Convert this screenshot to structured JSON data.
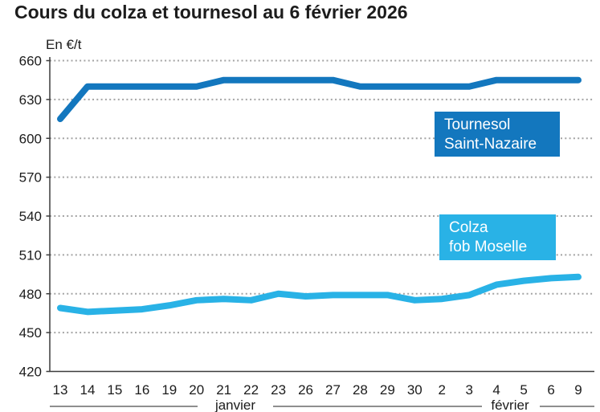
{
  "title": "Cours du colza et tournesol au 6 février 2026",
  "unit_label": "En €/t",
  "colors": {
    "tournesol_blue": "#1377be",
    "colza_blue": "#29b2e6",
    "grid_gray": "#a3a3a3",
    "axis_dark": "#3c3c3c",
    "text_dark": "#1c1c1c",
    "legend_text": "#ffffff"
  },
  "chart_data": {
    "type": "line",
    "title": "Cours du colza et tournesol au 6 février 2026",
    "ylabel": "En €/t",
    "xlabel": "",
    "ylim": [
      420,
      660
    ],
    "yticks": [
      420,
      450,
      480,
      510,
      540,
      570,
      600,
      630,
      660
    ],
    "grid": "dotted horizontal",
    "legend_position": "inline boxes right of plot center",
    "categories": [
      "13",
      "14",
      "15",
      "16",
      "19",
      "20",
      "21",
      "22",
      "23",
      "26",
      "27",
      "28",
      "29",
      "30",
      "2",
      "3",
      "4",
      "5",
      "6",
      "9"
    ],
    "x_groups": [
      {
        "label": "janvier",
        "from": "13",
        "to": "30"
      },
      {
        "label": "février",
        "from": "2",
        "to": "9"
      }
    ],
    "series": [
      {
        "name": "Tournesol Saint-Nazaire",
        "label_lines": [
          "Tournesol",
          "Saint-Nazaire"
        ],
        "color": "#1377be",
        "values": [
          615,
          640,
          640,
          640,
          640,
          640,
          645,
          645,
          645,
          645,
          645,
          640,
          640,
          640,
          640,
          640,
          645,
          645,
          645,
          645
        ]
      },
      {
        "name": "Colza fob Moselle",
        "label_lines": [
          "Colza",
          "fob Moselle"
        ],
        "color": "#29b2e6",
        "values": [
          469,
          466,
          467,
          468,
          471,
          475,
          476,
          475,
          480,
          478,
          479,
          479,
          479,
          475,
          476,
          479,
          487,
          490,
          492,
          493
        ]
      }
    ]
  }
}
